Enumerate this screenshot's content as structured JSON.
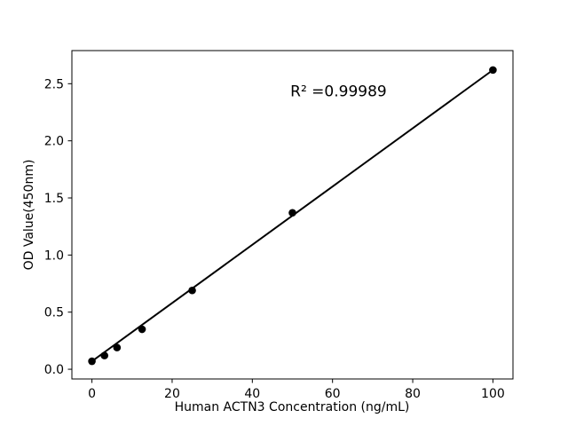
{
  "figure": {
    "background": "#ffffff",
    "foreground": "#000000"
  },
  "chart_data": {
    "type": "scatter",
    "title": "",
    "xlabel": "Human ACTN3 Concentration (ng/mL)",
    "ylabel": "OD Value(450nm)",
    "x": [
      0,
      3.125,
      6.25,
      12.5,
      25,
      50,
      100
    ],
    "y": [
      0.07,
      0.12,
      0.19,
      0.35,
      0.69,
      1.37,
      2.62
    ],
    "fit_line": {
      "x": [
        0,
        100
      ],
      "y": [
        0.07,
        2.62
      ]
    },
    "xlim": [
      -5,
      105
    ],
    "ylim": [
      -0.085,
      2.79
    ],
    "xticks": [
      0,
      20,
      40,
      60,
      80,
      100
    ],
    "xtick_labels": [
      "0",
      "20",
      "40",
      "60",
      "80",
      "100"
    ],
    "yticks": [
      0.0,
      0.5,
      1.0,
      1.5,
      2.0,
      2.5
    ],
    "ytick_labels": [
      "0.0",
      "0.5",
      "1.0",
      "1.5",
      "2.0",
      "2.5"
    ],
    "annotation": {
      "text": "R² =0.99989",
      "x": 61.5,
      "y": 2.39
    },
    "marker_color": "#000000",
    "line_color": "#000000",
    "grid": false,
    "legend": null
  }
}
